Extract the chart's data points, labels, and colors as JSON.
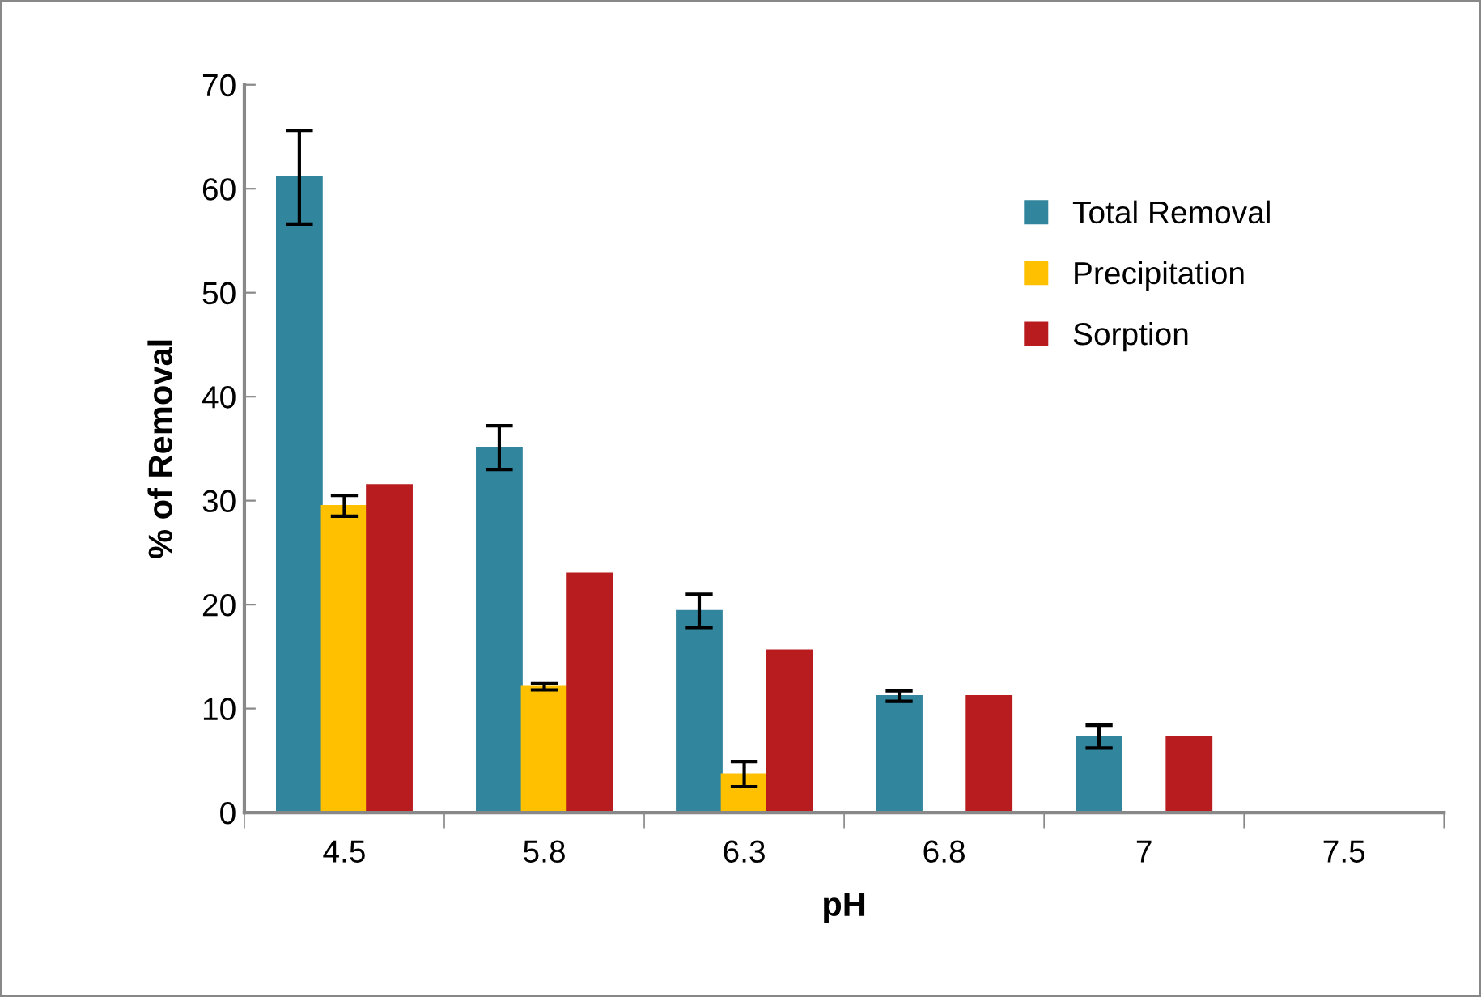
{
  "chart_data": {
    "type": "bar",
    "xlabel": "pH",
    "ylabel": "% of Removal",
    "categories": [
      "4.5",
      "5.8",
      "6.3",
      "6.8",
      "7",
      "7.5"
    ],
    "series": [
      {
        "name": "Total Removal",
        "color": "#31859c",
        "values": [
          61.1,
          35.1,
          19.4,
          11.2,
          7.3,
          0
        ],
        "errors": [
          4.5,
          2.1,
          1.6,
          0.5,
          1.1,
          null
        ]
      },
      {
        "name": "Precipitation",
        "color": "#ffc000",
        "values": [
          29.5,
          12.1,
          3.7,
          0,
          0,
          0
        ],
        "errors": [
          1,
          0.3,
          1.2,
          null,
          null,
          null
        ]
      },
      {
        "name": "Sorption",
        "color": "#b91c1f",
        "values": [
          31.5,
          23.0,
          15.6,
          11.2,
          7.3,
          0
        ]
      }
    ],
    "ylim": [
      0,
      70
    ],
    "yticks": [
      0,
      10,
      20,
      30,
      40,
      50,
      60,
      70
    ],
    "grid": false,
    "legend": "top right"
  }
}
